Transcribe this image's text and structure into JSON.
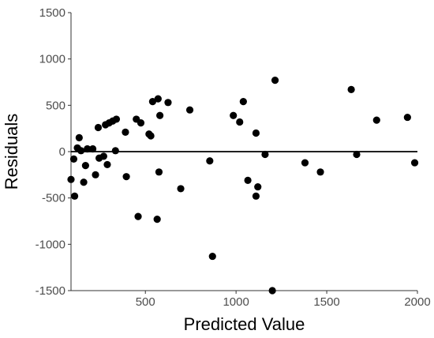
{
  "chart_data": {
    "type": "scatter",
    "title": "",
    "xlabel": "Predicted Value",
    "ylabel": "Residuals",
    "xlim": [
      90,
      2000
    ],
    "ylim": [
      -1500,
      1500
    ],
    "xticks": [
      500,
      1000,
      1500,
      2000
    ],
    "yticks": [
      -1500,
      -1000,
      -500,
      0,
      500,
      1000,
      1500
    ],
    "xtick_labels": [
      "500",
      "1000",
      "1500",
      "2000"
    ],
    "ytick_labels": [
      "-1500",
      "-1000",
      "-500",
      "0",
      "500",
      "1000",
      "1500"
    ],
    "reference_line_y": 0,
    "grid": false,
    "legend": "none",
    "colors": {
      "points": "#000000",
      "axes": "#333333",
      "ref_line": "#000000"
    },
    "points": [
      {
        "x": 90,
        "y": -300
      },
      {
        "x": 105,
        "y": -80
      },
      {
        "x": 110,
        "y": -480
      },
      {
        "x": 125,
        "y": 40
      },
      {
        "x": 135,
        "y": 150
      },
      {
        "x": 145,
        "y": 10
      },
      {
        "x": 160,
        "y": -330
      },
      {
        "x": 170,
        "y": -150
      },
      {
        "x": 180,
        "y": 30
      },
      {
        "x": 210,
        "y": 30
      },
      {
        "x": 225,
        "y": -250
      },
      {
        "x": 240,
        "y": 260
      },
      {
        "x": 245,
        "y": -70
      },
      {
        "x": 270,
        "y": -50
      },
      {
        "x": 280,
        "y": 290
      },
      {
        "x": 290,
        "y": -140
      },
      {
        "x": 300,
        "y": 310
      },
      {
        "x": 320,
        "y": 330
      },
      {
        "x": 335,
        "y": 10
      },
      {
        "x": 340,
        "y": 350
      },
      {
        "x": 390,
        "y": 210
      },
      {
        "x": 395,
        "y": -270
      },
      {
        "x": 450,
        "y": 350
      },
      {
        "x": 460,
        "y": -700
      },
      {
        "x": 475,
        "y": 310
      },
      {
        "x": 520,
        "y": 190
      },
      {
        "x": 530,
        "y": 170
      },
      {
        "x": 540,
        "y": 540
      },
      {
        "x": 565,
        "y": -730
      },
      {
        "x": 570,
        "y": 570
      },
      {
        "x": 575,
        "y": -220
      },
      {
        "x": 580,
        "y": 390
      },
      {
        "x": 625,
        "y": 530
      },
      {
        "x": 695,
        "y": -400
      },
      {
        "x": 745,
        "y": 450
      },
      {
        "x": 855,
        "y": -100
      },
      {
        "x": 870,
        "y": -1130
      },
      {
        "x": 985,
        "y": 390
      },
      {
        "x": 1020,
        "y": 320
      },
      {
        "x": 1040,
        "y": 540
      },
      {
        "x": 1065,
        "y": -310
      },
      {
        "x": 1110,
        "y": 200
      },
      {
        "x": 1110,
        "y": -480
      },
      {
        "x": 1120,
        "y": -380
      },
      {
        "x": 1160,
        "y": -30
      },
      {
        "x": 1200,
        "y": -1500
      },
      {
        "x": 1215,
        "y": 770
      },
      {
        "x": 1380,
        "y": -120
      },
      {
        "x": 1465,
        "y": -220
      },
      {
        "x": 1635,
        "y": 670
      },
      {
        "x": 1665,
        "y": -30
      },
      {
        "x": 1775,
        "y": 340
      },
      {
        "x": 1945,
        "y": 370
      },
      {
        "x": 1985,
        "y": -120
      }
    ]
  }
}
